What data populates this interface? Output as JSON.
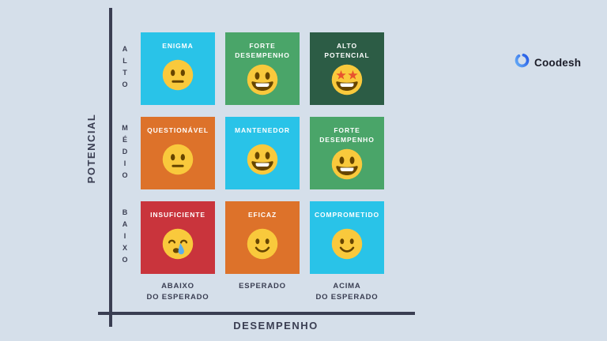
{
  "page": {
    "background": "#D5DFEA"
  },
  "axes": {
    "axis_color": "#3A3E52",
    "y_title": "POTENCIAL",
    "x_title": "DESEMPENHO",
    "y_ticks": [
      "ALTO",
      "MÉDIO",
      "BAIXO"
    ],
    "x_ticks": [
      {
        "line1": "ABAIXO",
        "line2": "DO ESPERADO"
      },
      {
        "line1": "ESPERADO",
        "line2": ""
      },
      {
        "line1": "ACIMA",
        "line2": "DO ESPERADO"
      }
    ]
  },
  "matrix": {
    "rows": [
      {
        "potential": "ALTO",
        "cells": [
          {
            "title": "ENIGMA",
            "color": "#29C3E8",
            "emoji": "neutral-face"
          },
          {
            "title": "FORTE DESEMPENHO",
            "color": "#4AA569",
            "emoji": "grinning-face"
          },
          {
            "title": "ALTO POTENCIAL",
            "color": "#2C5C45",
            "emoji": "star-struck-face"
          }
        ]
      },
      {
        "potential": "MÉDIO",
        "cells": [
          {
            "title": "QUESTIONÁVEL",
            "color": "#DD722A",
            "emoji": "neutral-face"
          },
          {
            "title": "MANTENEDOR",
            "color": "#29C3E8",
            "emoji": "grinning-face"
          },
          {
            "title": "FORTE DESEMPENHO",
            "color": "#4AA569",
            "emoji": "grinning-face"
          }
        ]
      },
      {
        "potential": "BAIXO",
        "cells": [
          {
            "title": "INSUFICIENTE",
            "color": "#C9343C",
            "emoji": "sleepy-tear-face"
          },
          {
            "title": "EFICAZ",
            "color": "#DD722A",
            "emoji": "smiling-face"
          },
          {
            "title": "COMPROMETIDO",
            "color": "#29C3E8",
            "emoji": "smiling-face"
          }
        ]
      }
    ]
  },
  "emoji_palette": {
    "face": "#F9C93C",
    "features": "#664500",
    "teeth": "#FFFFFF",
    "star": "#E8542E",
    "tear": "#5DADEC"
  },
  "logo": {
    "text": "Coodesh",
    "text_color": "#1B1C28",
    "icon": "coodesh-ring-icon",
    "icon_gradient": [
      "#66ADF7",
      "#2257E5"
    ]
  }
}
